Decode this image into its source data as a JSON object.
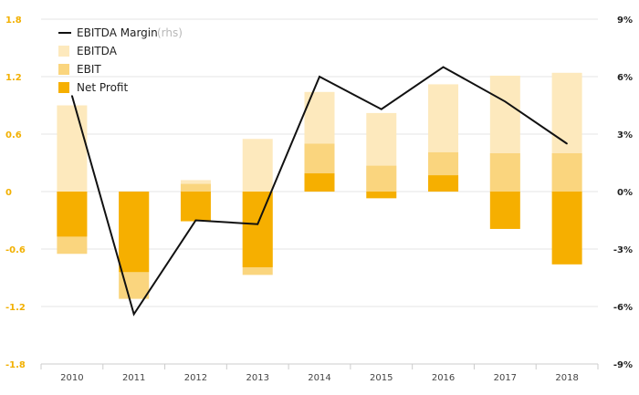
{
  "chart_data": {
    "type": "bar",
    "categories": [
      "2010",
      "2011",
      "2012",
      "2013",
      "2014",
      "2015",
      "2016",
      "2017",
      "2018"
    ],
    "series": [
      {
        "name": "EBITDA",
        "kind": "bar",
        "axis": "left",
        "values": [
          0.9,
          -1.1,
          0.12,
          0.55,
          1.04,
          0.82,
          1.12,
          1.21,
          1.24
        ]
      },
      {
        "name": "EBIT",
        "kind": "bar",
        "axis": "left",
        "values": [
          -0.65,
          -1.12,
          0.08,
          -0.87,
          0.5,
          0.27,
          0.41,
          0.4,
          0.4
        ]
      },
      {
        "name": "Net Profit",
        "kind": "bar",
        "axis": "left",
        "values": [
          -0.47,
          -0.84,
          -0.31,
          -0.79,
          0.19,
          -0.07,
          0.17,
          -0.39,
          -0.76
        ]
      },
      {
        "name": "EBITDA Margin",
        "kind": "line",
        "axis": "right",
        "values": [
          5.0,
          -6.4,
          -1.5,
          -1.7,
          6.0,
          4.3,
          6.5,
          4.7,
          2.5
        ]
      }
    ],
    "legend": {
      "line_label": "EBITDA Margin",
      "line_suffix": "(rhs)",
      "items": [
        "EBITDA",
        "EBIT",
        "Net Profit"
      ],
      "placement": "top-left"
    },
    "ylim": [
      -1.8,
      1.8
    ],
    "yticks": [
      -1.8,
      -1.2,
      -0.6,
      0,
      0.6,
      1.2,
      1.8
    ],
    "ytick_labels": [
      "-1.8",
      "-1.2",
      "-0.6",
      "0",
      "0.6",
      "1.2",
      "1.8"
    ],
    "y2lim": [
      -9,
      9
    ],
    "y2ticks": [
      -9,
      -6,
      -3,
      0,
      3,
      6,
      9
    ],
    "y2tick_labels": [
      "-9%",
      "-6%",
      "-3%",
      "0%",
      "3%",
      "6%",
      "9%"
    ],
    "grid": true,
    "colors": {
      "EBITDA": "#fde9bd",
      "EBIT": "#fad57e",
      "Net Profit": "#f6af00",
      "EBITDA Margin": "#111111",
      "left_ticks": "#f2b000",
      "right_ticks": "#222222",
      "grid": "#e4e4e4"
    }
  }
}
